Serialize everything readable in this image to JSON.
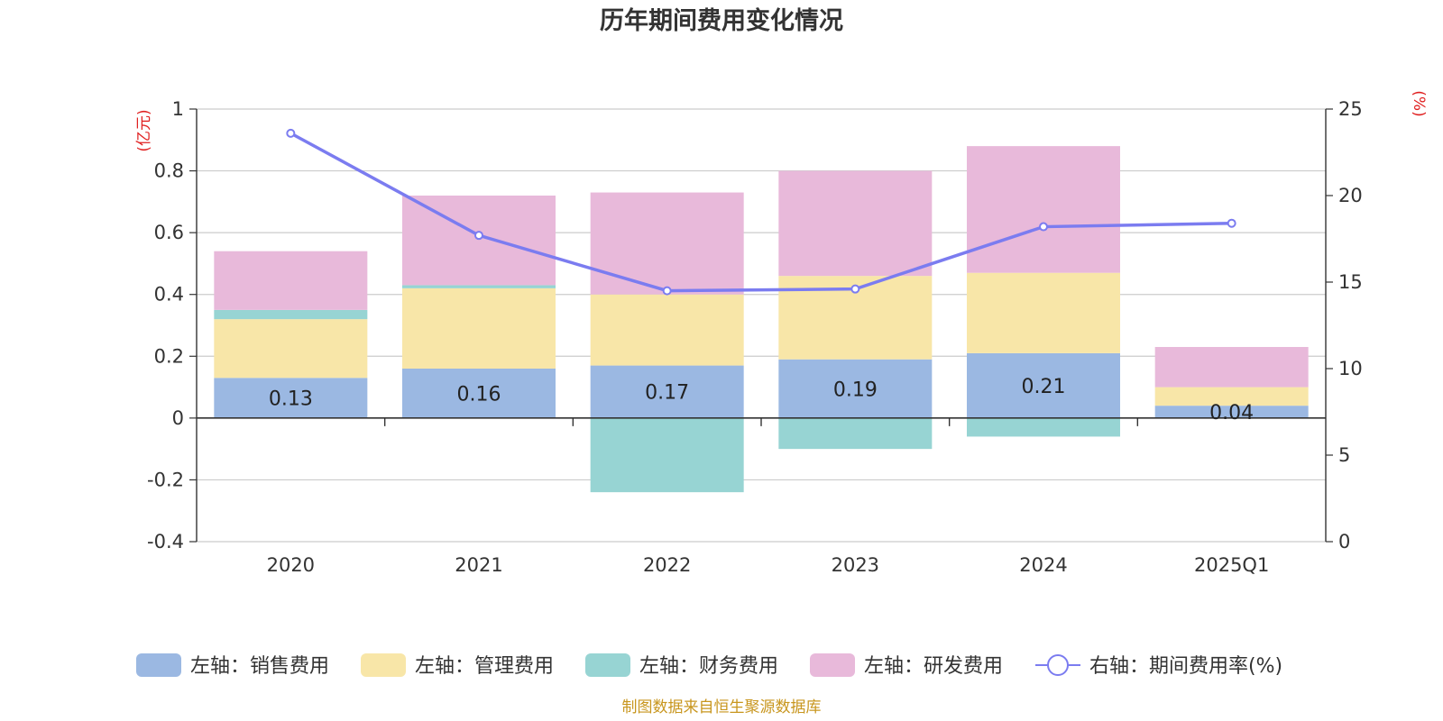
{
  "chart_data": {
    "type": "bar",
    "title": "历年期间费用变化情况",
    "categories": [
      "2020",
      "2021",
      "2022",
      "2023",
      "2024",
      "2025Q1"
    ],
    "left_axis": {
      "unit": "(亿元)",
      "ylim": [
        -0.4,
        1
      ],
      "ticks": [
        "1",
        "0.8",
        "0.6",
        "0.4",
        "0.2",
        "0",
        "-0.2",
        "-0.4"
      ]
    },
    "right_axis": {
      "unit": "(%)",
      "ylim": [
        0,
        25
      ],
      "ticks": [
        "25",
        "20",
        "15",
        "10",
        "5",
        "0"
      ]
    },
    "series": [
      {
        "name": "左轴：销售费用",
        "axis": "left",
        "type": "bar",
        "color": "#9bb8e2",
        "values": [
          0.13,
          0.16,
          0.17,
          0.19,
          0.21,
          0.04
        ],
        "labels": [
          "0.13",
          "0.16",
          "0.17",
          "0.19",
          "0.21",
          "0.04"
        ]
      },
      {
        "name": "左轴：管理费用",
        "axis": "left",
        "type": "bar",
        "color": "#f8e6a8",
        "values": [
          0.19,
          0.26,
          0.23,
          0.27,
          0.26,
          0.06
        ]
      },
      {
        "name": "左轴：财务费用",
        "axis": "left",
        "type": "bar",
        "color": "#97d4d3",
        "values": [
          0.03,
          0.01,
          -0.24,
          -0.1,
          -0.06,
          0.0
        ]
      },
      {
        "name": "左轴：研发费用",
        "axis": "left",
        "type": "bar",
        "color": "#e8b9da",
        "values": [
          0.19,
          0.29,
          0.33,
          0.34,
          0.41,
          0.13
        ]
      },
      {
        "name": "右轴：期间费用率(%)",
        "axis": "right",
        "type": "line",
        "color": "#7b7cf0",
        "values": [
          23.6,
          17.7,
          14.5,
          14.6,
          18.2,
          18.4
        ]
      }
    ],
    "grid": true,
    "legend": "bottom"
  },
  "source_note": "制图数据来自恒生聚源数据库"
}
